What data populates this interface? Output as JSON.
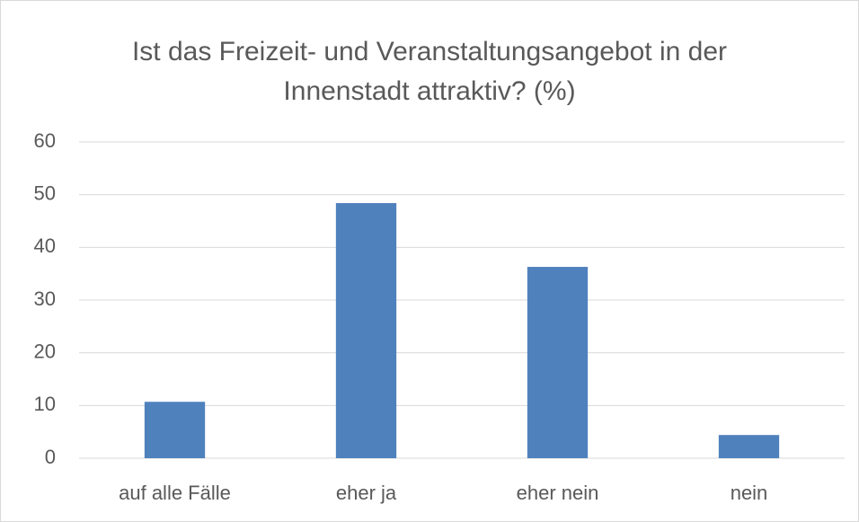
{
  "chart_data": {
    "type": "bar",
    "title": "Ist das Freizeit- und Veranstaltungsangebot in der Innenstadt attraktiv? (%)",
    "categories": [
      "auf alle Fälle",
      "eher ja",
      "eher nein",
      "nein"
    ],
    "values": [
      10.7,
      48.4,
      36.3,
      4.4
    ],
    "color": "#4f81bd",
    "ylim": [
      0,
      60
    ],
    "yticks": [
      0,
      10,
      20,
      30,
      40,
      50,
      60
    ],
    "grid": true
  }
}
